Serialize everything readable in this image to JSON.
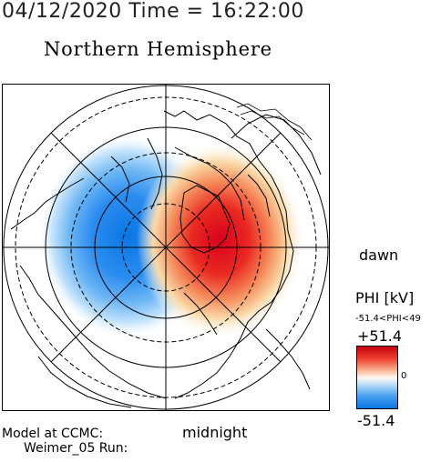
{
  "header": {
    "datetime": "04/12/2020 Time = 16:22:00",
    "hemisphere": "Northern Hemisphere"
  },
  "map": {
    "dawn_label": "dawn",
    "midnight_label": "midnight",
    "projection": "polar",
    "pole": "north",
    "potential_cells": [
      {
        "sign": "negative",
        "side": "dusk",
        "color": "#0a76e4"
      },
      {
        "sign": "positive",
        "side": "dawn",
        "color": "#d8001c"
      }
    ]
  },
  "footer": {
    "line1": "Model at CCMC:",
    "line2": "Weimer_05 Run:"
  },
  "colorbar": {
    "title": "PHI [kV]",
    "range_text": "-51.4<PHI<49",
    "max_label": "+51.4",
    "zero_label": "0",
    "min_label": "-51.4",
    "max_value": 51.4,
    "min_value": -51.4,
    "colors": [
      "#c40012",
      "#fff8f0",
      "#0a76e4"
    ]
  }
}
